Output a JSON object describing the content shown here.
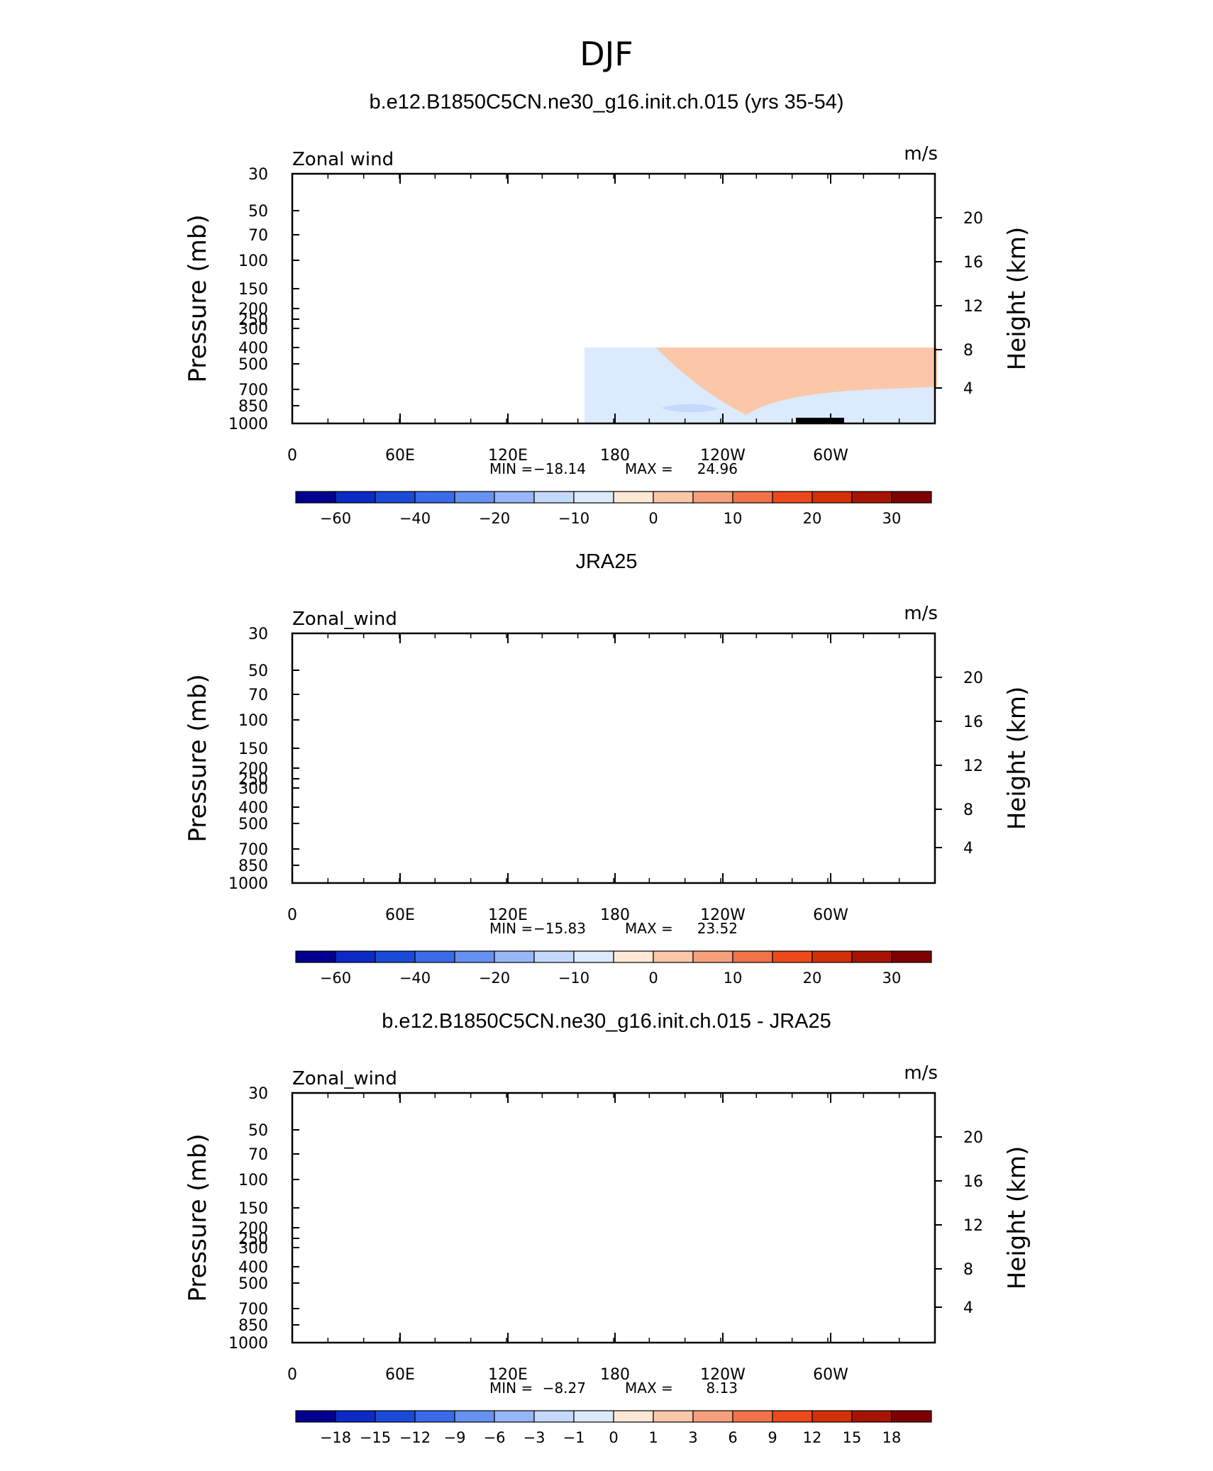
{
  "page_title": "DJF",
  "chart_data": [
    {
      "type": "heatmap",
      "title": "b.e12.B1850C5CN.ne30_g16.init.ch.015 (yrs 35-54)",
      "left_label": "Zonal wind",
      "units": "m/s",
      "ylabel": "Pressure  (mb)",
      "ylabel_right": "Height  (km)",
      "x_ticks": [
        "0",
        "60E",
        "120E",
        "180",
        "120W",
        "60W"
      ],
      "y_ticks": [
        "30",
        "50",
        "70",
        "100",
        "150",
        "200",
        "250",
        "300",
        "400",
        "500",
        "700",
        "850",
        "1000"
      ],
      "height_ticks": [
        "20",
        "16",
        "12",
        "8",
        "4"
      ],
      "stats": {
        "min_label": "MIN =",
        "min": "−18.14",
        "max_label": "MAX =",
        "max": "24.96"
      },
      "colorbar": {
        "colors": [
          "#02008f",
          "#0c2bc4",
          "#1a4bd8",
          "#3a6be8",
          "#6591f1",
          "#97b6f8",
          "#c4d9fb",
          "#dceafd",
          "#fde8d6",
          "#fbc7a9",
          "#f6a07b",
          "#f17449",
          "#ec4a1c",
          "#d23107",
          "#a81404",
          "#7e0101"
        ],
        "labels": [
          "−60",
          "−40",
          "−20",
          "−10",
          "0",
          "10",
          "20",
          "30"
        ]
      }
    },
    {
      "type": "heatmap",
      "title": "JRA25",
      "left_label": "Zonal_wind",
      "units": "m/s",
      "ylabel": "Pressure  (mb)",
      "ylabel_right": "Height  (km)",
      "x_ticks": [
        "0",
        "60E",
        "120E",
        "180",
        "120W",
        "60W"
      ],
      "y_ticks": [
        "30",
        "50",
        "70",
        "100",
        "150",
        "200",
        "250",
        "300",
        "400",
        "500",
        "700",
        "850",
        "1000"
      ],
      "height_ticks": [
        "20",
        "16",
        "12",
        "8",
        "4"
      ],
      "stats": {
        "min_label": "MIN =",
        "min": "−15.83",
        "max_label": "MAX =",
        "max": "23.52"
      },
      "colorbar": {
        "colors": [
          "#02008f",
          "#0c2bc4",
          "#1a4bd8",
          "#3a6be8",
          "#6591f1",
          "#97b6f8",
          "#c4d9fb",
          "#dceafd",
          "#fde8d6",
          "#fbc7a9",
          "#f6a07b",
          "#f17449",
          "#ec4a1c",
          "#d23107",
          "#a81404",
          "#7e0101"
        ],
        "labels": [
          "−60",
          "−40",
          "−20",
          "−10",
          "0",
          "10",
          "20",
          "30"
        ]
      }
    },
    {
      "type": "heatmap",
      "title": "b.e12.B1850C5CN.ne30_g16.init.ch.015 - JRA25",
      "left_label": "Zonal_wind",
      "units": "m/s",
      "ylabel": "Pressure  (mb)",
      "ylabel_right": "Height  (km)",
      "x_ticks": [
        "0",
        "60E",
        "120E",
        "180",
        "120W",
        "60W"
      ],
      "y_ticks": [
        "30",
        "50",
        "70",
        "100",
        "150",
        "200",
        "250",
        "300",
        "400",
        "500",
        "700",
        "850",
        "1000"
      ],
      "height_ticks": [
        "20",
        "16",
        "12",
        "8",
        "4"
      ],
      "stats": {
        "min_label": "MIN =",
        "min": "−8.27",
        "max_label": "MAX =",
        "max": "8.13"
      },
      "colorbar": {
        "colors": [
          "#02008f",
          "#0c2bc4",
          "#1a4bd8",
          "#3a6be8",
          "#6591f1",
          "#97b6f8",
          "#c4d9fb",
          "#dceafd",
          "#fde8d6",
          "#fbc7a9",
          "#f6a07b",
          "#f17449",
          "#ec4a1c",
          "#d23107",
          "#a81404",
          "#7e0101"
        ],
        "labels": [
          "−18",
          "−15",
          "−12",
          "−9",
          "−6",
          "−3",
          "−1",
          "0",
          "1",
          "3",
          "6",
          "9",
          "12",
          "15",
          "18"
        ]
      }
    }
  ]
}
